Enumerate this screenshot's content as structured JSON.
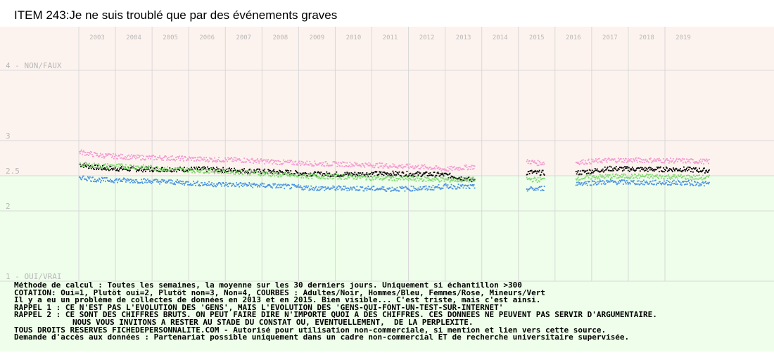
{
  "title": "ITEM 243:Je ne suis troublé que par des événements graves",
  "colors": {
    "band_top": "#fdf3ee",
    "band_bottom": "#eefeea",
    "grid": "#d8d8d8",
    "label": "#b8b8b8",
    "black_series": "#000000",
    "blue_series": "#4a90e2",
    "pink_series": "#f29ad0",
    "green_series": "#80d870"
  },
  "chart_data": {
    "type": "scatter",
    "title": "ITEM 243:Je ne suis troublé que par des événements graves",
    "xlabel": "",
    "ylabel": "",
    "x_ticks": [
      "2003",
      "2004",
      "2005",
      "2006",
      "2007",
      "2008",
      "2009",
      "2010",
      "2011",
      "2012",
      "2013",
      "2014",
      "2015",
      "2016",
      "2017",
      "2018",
      "2019"
    ],
    "y_ticks": [
      {
        "value": 4,
        "label": "4 - NON/FAUX"
      },
      {
        "value": 3,
        "label": "3"
      },
      {
        "value": 2.5,
        "label": "2.5"
      },
      {
        "value": 2,
        "label": "2"
      },
      {
        "value": 1,
        "label": "1 - OUI/VRAI"
      }
    ],
    "ylim": [
      1,
      4
    ],
    "xlim": [
      2002.4,
      2020.3
    ],
    "band_split": 2.5,
    "grid": true,
    "legend": "none",
    "gap": [
      2013.3,
      2014.7
    ],
    "series": [
      {
        "key": "black",
        "color": "#000000",
        "points": [
          [
            2002.5,
            2.67
          ],
          [
            2003.0,
            2.62
          ],
          [
            2004.0,
            2.6
          ],
          [
            2005.0,
            2.6
          ],
          [
            2006.0,
            2.6
          ],
          [
            2007.0,
            2.58
          ],
          [
            2008.0,
            2.56
          ],
          [
            2009.0,
            2.53
          ],
          [
            2010.0,
            2.53
          ],
          [
            2011.0,
            2.54
          ],
          [
            2012.0,
            2.53
          ],
          [
            2012.5,
            2.52
          ],
          [
            2013.0,
            2.47
          ],
          [
            2013.2,
            2.45
          ],
          [
            2014.8,
            2.56
          ],
          [
            2015.0,
            2.55
          ],
          [
            2016.1,
            2.55
          ],
          [
            2017.0,
            2.61
          ],
          [
            2018.0,
            2.6
          ],
          [
            2019.0,
            2.6
          ],
          [
            2019.7,
            2.58
          ]
        ]
      },
      {
        "key": "pink",
        "color": "#f29ad0",
        "points": [
          [
            2002.5,
            2.85
          ],
          [
            2003.0,
            2.8
          ],
          [
            2004.0,
            2.77
          ],
          [
            2005.0,
            2.76
          ],
          [
            2006.0,
            2.74
          ],
          [
            2007.0,
            2.73
          ],
          [
            2008.0,
            2.7
          ],
          [
            2009.0,
            2.68
          ],
          [
            2010.0,
            2.67
          ],
          [
            2011.0,
            2.65
          ],
          [
            2012.0,
            2.63
          ],
          [
            2012.5,
            2.6
          ],
          [
            2014.8,
            2.71
          ],
          [
            2015.0,
            2.69
          ],
          [
            2016.1,
            2.7
          ],
          [
            2017.0,
            2.73
          ],
          [
            2018.0,
            2.73
          ],
          [
            2019.0,
            2.72
          ],
          [
            2019.7,
            2.71
          ]
        ]
      },
      {
        "key": "green",
        "color": "#80d870",
        "points": [
          [
            2002.5,
            2.67
          ],
          [
            2003.0,
            2.65
          ],
          [
            2004.0,
            2.64
          ],
          [
            2005.0,
            2.6
          ],
          [
            2006.0,
            2.58
          ],
          [
            2007.0,
            2.56
          ],
          [
            2008.0,
            2.52
          ],
          [
            2009.0,
            2.5
          ],
          [
            2010.0,
            2.49
          ],
          [
            2011.0,
            2.47
          ],
          [
            2012.0,
            2.46
          ],
          [
            2012.5,
            2.45
          ],
          [
            2014.8,
            2.46
          ],
          [
            2015.0,
            2.45
          ],
          [
            2016.1,
            2.48
          ],
          [
            2017.0,
            2.5
          ],
          [
            2018.0,
            2.5
          ],
          [
            2019.0,
            2.49
          ],
          [
            2019.7,
            2.48
          ]
        ]
      },
      {
        "key": "blue",
        "color": "#4a90e2",
        "points": [
          [
            2002.5,
            2.49
          ],
          [
            2003.0,
            2.45
          ],
          [
            2004.0,
            2.44
          ],
          [
            2005.0,
            2.42
          ],
          [
            2006.0,
            2.39
          ],
          [
            2007.0,
            2.38
          ],
          [
            2008.0,
            2.36
          ],
          [
            2009.0,
            2.33
          ],
          [
            2010.0,
            2.33
          ],
          [
            2011.0,
            2.32
          ],
          [
            2012.0,
            2.33
          ],
          [
            2012.5,
            2.36
          ],
          [
            2014.8,
            2.32
          ],
          [
            2015.0,
            2.32
          ],
          [
            2016.1,
            2.4
          ],
          [
            2017.0,
            2.42
          ],
          [
            2018.0,
            2.41
          ],
          [
            2019.0,
            2.41
          ],
          [
            2019.7,
            2.39
          ]
        ]
      }
    ]
  },
  "notes": [
    "Méthode de calcul : Toutes les semaines, la moyenne sur les 30 derniers jours. Uniquement si échantillon >300",
    "COTATION: Oui=1, Plutôt oui=2, Plutôt non=3, Non=4, COURBES : Adultes/Noir, Hommes/Bleu, Femmes/Rose, Mineurs/Vert",
    "Il y a eu un problème de collectes de données en 2013 et en 2015. Bien visible... C'est triste, mais c'est ainsi.",
    "RAPPEL 1 : CE N'EST PAS L'EVOLUTION DES 'GENS', MAIS L'EVOLUTION DES 'GENS-QUI-FONT-UN-TEST-SUR-INTERNET'",
    "RAPPEL 2 : CE SONT DES CHIFFRES BRUTS. ON PEUT FAIRE DIRE N'IMPORTE QUOI A DES CHIFFRES. CES DONNEES NE PEUVENT PAS SERVIR D'ARGUMENTAIRE.",
    "NOUS VOUS INVITONS A RESTER AU STADE DU CONSTAT OU, EVENTUELLEMENT,  DE LA PERPLEXITE.",
    "TOUS DROITS RESERVES FICHEDEPERSONNALITE.COM - Autorisé pour utilisation non-commerciale, si mention et lien vers cette source.",
    "Demande d'accès aux données : Partenariat possible uniquement dans un cadre non-commercial ET de recherche universitaire supervisée."
  ]
}
